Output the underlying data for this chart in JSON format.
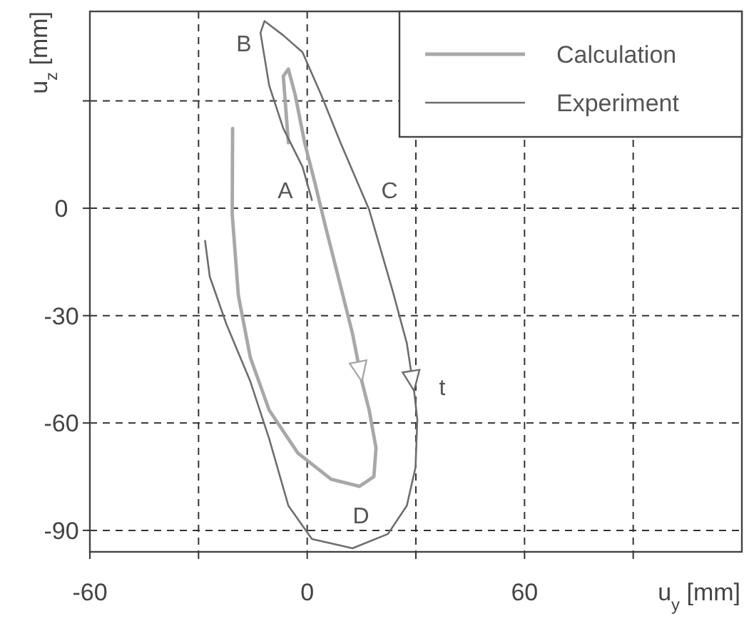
{
  "chart_data": {
    "type": "line",
    "xlabel": "u$_{y}$ [mm]",
    "ylabel": "u$_{z}$ [mm]",
    "xlim": [
      -60,
      120
    ],
    "ylim": [
      -96,
      55
    ],
    "xticks": [
      -60,
      {
        "value": -30,
        "label": null
      },
      0,
      {
        "value": 30,
        "label": null
      },
      60,
      {
        "value": 90,
        "label": null
      }
    ],
    "yticks": [
      -90,
      -60,
      -30,
      0,
      {
        "value": 30,
        "label": null
      }
    ],
    "grid": true,
    "legend": "top right",
    "line_style": "solid",
    "marker": "none",
    "series": [
      {
        "name": "Calculation",
        "color": "#a8a8a8",
        "x": [
          -5.2,
          -6.6,
          -5.2,
          -3.3,
          -0.7,
          2,
          5.2,
          9.2,
          12.5,
          15.1,
          17.1,
          19,
          18.4,
          14.4,
          6.6,
          -2.6,
          -10.5,
          -15.7,
          -19,
          -20.7,
          -20.6
        ],
        "values": [
          18.3,
          36.9,
          38.9,
          31.6,
          18.3,
          7.6,
          -5.7,
          -21.7,
          -35,
          -48.4,
          -56.4,
          -67,
          -75,
          -77.7,
          -75.7,
          -68.4,
          -56.4,
          -41.7,
          -24.4,
          -1.7,
          22.3
        ]
      },
      {
        "name": "Experiment",
        "color": "#6e6e6e",
        "x": [
          1.3,
          -1.3,
          -6.6,
          -10.5,
          -12.9,
          -11.8,
          -6.6,
          -1.3,
          3.9,
          9.2,
          17.1,
          23.6,
          27.5,
          29.5,
          30.4,
          29.9,
          27.5,
          22.3,
          12.5,
          1.3,
          -5.2,
          -10.5,
          -15.7,
          -22.3,
          -26.9,
          -28.2
        ],
        "values": [
          2.3,
          11.6,
          22.3,
          34.3,
          49,
          52.3,
          48.3,
          43.6,
          31.6,
          18.3,
          -0.4,
          -23.1,
          -37.7,
          -51,
          -59,
          -72.4,
          -83.1,
          -91,
          -95,
          -92.4,
          -83.1,
          -64.4,
          -48.4,
          -32.4,
          -19.1,
          -9.1
        ]
      }
    ],
    "annotations": [
      "A",
      "B",
      "C",
      "D",
      "t"
    ]
  }
}
